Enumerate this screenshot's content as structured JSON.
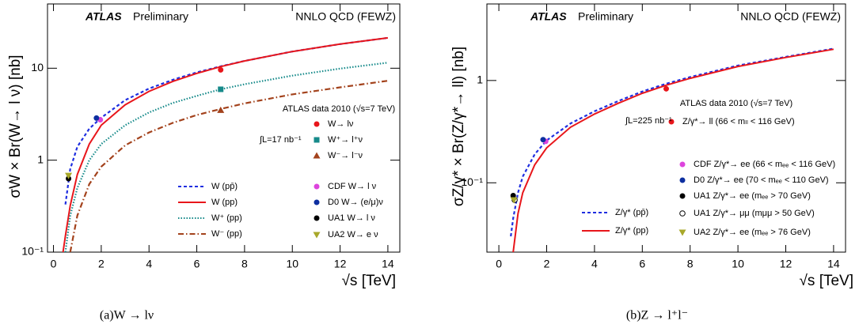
{
  "chart_data": [
    {
      "type": "line",
      "title": "ATLAS",
      "subtitle": "Preliminary",
      "annotation": "NNLO QCD (FEWZ)",
      "data_label": "ATLAS data 2010 (√s=7 TeV)",
      "luminosity": "∫L=17 nb⁻¹",
      "x_label": "√s [TeV]",
      "y_label": "σW × Br(W→ l ν) [nb]",
      "caption": "(a)W → lν",
      "log_y": true,
      "xlim": [
        -0.25,
        14.5
      ],
      "xticks": [
        0,
        2,
        4,
        6,
        8,
        10,
        12,
        14
      ],
      "ylim": [
        0.1,
        50
      ],
      "yticks": [
        {
          "value": 0.1,
          "label": "10⁻¹"
        },
        1,
        10
      ],
      "point_legend_colored": false,
      "series": [
        {
          "name": "W (pp̄)",
          "color": "#1f2ee0",
          "dash": "dashed",
          "x": [
            0.4,
            0.5,
            0.7,
            1,
            1.5,
            2,
            3,
            4,
            5,
            6,
            7,
            8,
            10,
            12,
            14
          ],
          "values": [
            null,
            0.33,
            0.8,
            1.4,
            2.2,
            2.9,
            4.5,
            6.0,
            7.5,
            9.0,
            10.5,
            12.0,
            15.2,
            18.3,
            21.4
          ]
        },
        {
          "name": "W (pp)",
          "color": "#e8161b",
          "dash": "solid",
          "x": [
            0.4,
            0.5,
            0.7,
            1,
            1.5,
            2,
            3,
            4,
            5,
            6,
            7,
            8,
            10,
            12,
            14
          ],
          "values": [
            0.1,
            0.15,
            0.32,
            0.7,
            1.5,
            2.4,
            4.0,
            5.6,
            7.2,
            8.8,
            10.4,
            12.0,
            15.2,
            18.3,
            21.4
          ]
        },
        {
          "name": "W⁺ (pp)",
          "color": "#168a8a",
          "dash": "dotted",
          "x": [
            0.4,
            0.5,
            0.7,
            1,
            1.5,
            2,
            3,
            4,
            5,
            6,
            7,
            8,
            10,
            12,
            14
          ],
          "values": [
            null,
            0.1,
            0.25,
            0.5,
            1.0,
            1.5,
            2.4,
            3.3,
            4.2,
            5.0,
            5.9,
            6.7,
            8.3,
            9.9,
            11.5
          ]
        },
        {
          "name": "W⁻ (pp)",
          "color": "#a3421c",
          "dash": "dashdot",
          "x": [
            0.4,
            0.5,
            0.7,
            1,
            1.5,
            2,
            3,
            4,
            5,
            6,
            7,
            8,
            10,
            12,
            14
          ],
          "values": [
            null,
            null,
            0.1,
            0.25,
            0.55,
            0.85,
            1.45,
            2.0,
            2.55,
            3.1,
            3.6,
            4.15,
            5.2,
            6.2,
            7.3
          ]
        },
        {
          "name": "W→ lν",
          "color": "#e8161b",
          "marker": "circle",
          "x": [
            7
          ],
          "values": [
            9.6
          ]
        },
        {
          "name": "W⁺→ l⁺ν",
          "color": "#168a8a",
          "marker": "square",
          "x": [
            7
          ],
          "values": [
            5.9
          ]
        },
        {
          "name": "W⁻→ l⁻ν",
          "color": "#a3421c",
          "marker": "triangle-up",
          "x": [
            7
          ],
          "values": [
            3.5
          ]
        },
        {
          "name": "CDF W→ l ν",
          "color": "#dd44dd",
          "marker": "circle",
          "x": [
            1.96
          ],
          "values": [
            2.75
          ]
        },
        {
          "name": "D0 W→ (e/μ)ν",
          "color": "#0d2fa0",
          "marker": "circle",
          "x": [
            1.8
          ],
          "values": [
            2.87
          ]
        },
        {
          "name": "UA1 W→ l ν",
          "color": "#000000",
          "marker": "circle",
          "x": [
            0.63
          ],
          "values": [
            0.63
          ]
        },
        {
          "name": "UA2 W→ e ν",
          "color": "#a8a82a",
          "marker": "triangle-down",
          "x": [
            0.63
          ],
          "values": [
            0.68
          ]
        }
      ]
    },
    {
      "type": "line",
      "title": "ATLAS",
      "subtitle": "Preliminary",
      "annotation": "NNLO QCD (FEWZ)",
      "data_label": "ATLAS data 2010 (√s=7 TeV)",
      "luminosity": "∫L=225 nb⁻¹",
      "x_label": "√s [TeV]",
      "y_label": "σZ/γ* × Br(Z/γ*→ ll) [nb]",
      "caption": "(b)Z → l⁺l⁻",
      "log_y": true,
      "xlim": [
        -0.5,
        14.5
      ],
      "xticks": [
        0,
        2,
        4,
        6,
        8,
        10,
        12,
        14
      ],
      "ylim": [
        0.021,
        5.6
      ],
      "yticks": [
        {
          "value": 0.1,
          "label": "10⁻¹"
        },
        1
      ],
      "point_legend_colored": true,
      "series": [
        {
          "name": "Z/γ* (pp̄)",
          "color": "#1f2ee0",
          "dash": "dashed",
          "x": [
            0.5,
            0.6,
            0.8,
            1,
            1.5,
            2,
            3,
            4,
            5,
            6,
            7,
            8,
            10,
            12,
            14
          ],
          "values": [
            0.03,
            0.045,
            0.08,
            0.115,
            0.19,
            0.26,
            0.38,
            0.5,
            0.63,
            0.78,
            0.93,
            1.08,
            1.4,
            1.7,
            2.05
          ]
        },
        {
          "name": "Z/γ* (pp)",
          "color": "#e8161b",
          "dash": "solid",
          "x": [
            0.5,
            0.6,
            0.8,
            1,
            1.5,
            2,
            3,
            4,
            5,
            6,
            7,
            8,
            10,
            12,
            14
          ],
          "values": [
            null,
            0.021,
            0.05,
            0.08,
            0.15,
            0.22,
            0.35,
            0.47,
            0.6,
            0.75,
            0.9,
            1.05,
            1.37,
            1.68,
            2.02
          ]
        },
        {
          "name": "Z/γ*→ ll  (66 < mₗₗ < 116 GeV)",
          "color": "#e8161b",
          "marker": "circle",
          "x": [
            7
          ],
          "values": [
            0.83
          ]
        },
        {
          "name": "CDF Z/γ*→ ee  (66 < mₑₑ < 116 GeV)",
          "color": "#dd44dd",
          "marker": "circle",
          "x": [
            1.96
          ],
          "values": [
            0.254
          ]
        },
        {
          "name": "D0 Z/γ*→ ee  (70 < mₑₑ < 110 GeV)",
          "color": "#0d2fa0",
          "marker": "circle",
          "x": [
            1.85
          ],
          "values": [
            0.264
          ]
        },
        {
          "name": "UA1 Z/γ*→ ee  (mₑₑ > 70 GeV)",
          "color": "#000000",
          "marker": "circle",
          "x": [
            0.6
          ],
          "values": [
            0.075
          ]
        },
        {
          "name": "UA1 Z/γ*→ μμ  (mμμ > 50 GeV)",
          "color": "#000000",
          "marker": "open-circle",
          "x": [
            0.66
          ],
          "values": [
            0.068
          ]
        },
        {
          "name": "UA2 Z/γ*→ ee  (mₑₑ > 76 GeV)",
          "color": "#a8a82a",
          "marker": "triangle-down",
          "x": [
            0.63
          ],
          "values": [
            0.068
          ]
        }
      ]
    }
  ]
}
